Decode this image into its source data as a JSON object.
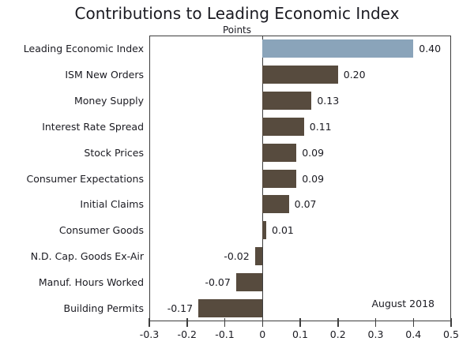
{
  "chart_data": {
    "type": "bar",
    "orientation": "horizontal",
    "title": "Contributions to Leading Economic Index",
    "axis_title": "Points",
    "annotation": "August 2018",
    "categories": [
      "Leading Economic Index",
      "ISM New Orders",
      "Money Supply",
      "Interest Rate Spread",
      "Stock Prices",
      "Consumer Expectations",
      "Initial Claims",
      "Consumer Goods",
      "N.D. Cap. Goods Ex-Air",
      "Manuf. Hours Worked",
      "Building Permits"
    ],
    "values": [
      0.4,
      0.2,
      0.13,
      0.11,
      0.09,
      0.09,
      0.07,
      0.01,
      -0.02,
      -0.07,
      -0.17
    ],
    "value_labels": [
      "0.40",
      "0.20",
      "0.13",
      "0.11",
      "0.09",
      "0.09",
      "0.07",
      "0.01",
      "-0.02",
      "-0.07",
      "-0.17"
    ],
    "xlim": [
      -0.3,
      0.5
    ],
    "x_ticks": [
      -0.3,
      -0.2,
      -0.1,
      0,
      0.1,
      0.2,
      0.3,
      0.4,
      0.5
    ],
    "x_tick_labels": [
      "-0.3",
      "-0.2",
      "-0.1",
      "0",
      "0.1",
      "0.2",
      "0.3",
      "0.4",
      "0.5"
    ],
    "highlight_index": 0,
    "highlight_color": "#8AA4BA",
    "bar_color": "#574B3E",
    "axis_color": "#3E3E3E",
    "text_color": "#1B1B22",
    "background_color": "#FFFFFF",
    "grid": false,
    "legend": false
  }
}
